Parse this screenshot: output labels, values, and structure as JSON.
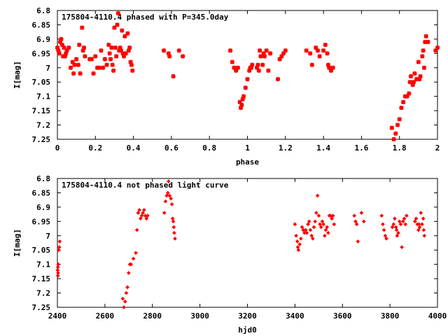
{
  "chart_data": [
    {
      "type": "scatter",
      "title": "175804-4110.4 phased with P=345.0day",
      "xlabel": "phase",
      "ylabel": "I[mag]",
      "xlim": [
        0,
        2
      ],
      "ylim": [
        7.25,
        6.8
      ],
      "y_inverted": true,
      "x_ticks": [
        "0",
        "0.2",
        "0.4",
        "0.6",
        "0.8",
        "1",
        "1.2",
        "1.4",
        "1.6",
        "1.8",
        "2"
      ],
      "y_ticks": [
        "6.8",
        "6.85",
        "6.9",
        "6.95",
        "7",
        "7.05",
        "7.1",
        "7.15",
        "7.2",
        "7.25"
      ],
      "marker": "star",
      "color": "#ff0000",
      "grid": false,
      "series": [
        {
          "points": [
            [
              0.0,
              6.93
            ],
            [
              0.005,
              6.94
            ],
            [
              0.01,
              6.95
            ],
            [
              0.015,
              6.91
            ],
            [
              0.02,
              6.9
            ],
            [
              0.025,
              6.92
            ],
            [
              0.03,
              6.96
            ],
            [
              0.035,
              6.93
            ],
            [
              0.04,
              6.96
            ],
            [
              0.045,
              6.95
            ],
            [
              0.05,
              6.94
            ],
            [
              0.06,
              6.93
            ],
            [
              0.07,
              7.0
            ],
            [
              0.08,
              6.98
            ],
            [
              0.085,
              7.02
            ],
            [
              0.09,
              6.99
            ],
            [
              0.1,
              6.97
            ],
            [
              0.11,
              6.99
            ],
            [
              0.115,
              6.92
            ],
            [
              0.12,
              7.02
            ],
            [
              0.13,
              6.86
            ],
            [
              0.135,
              6.94
            ],
            [
              0.14,
              6.93
            ],
            [
              0.145,
              6.96
            ],
            [
              0.17,
              6.97
            ],
            [
              0.18,
              6.97
            ],
            [
              0.19,
              7.02
            ],
            [
              0.2,
              6.96
            ],
            [
              0.21,
              7.0
            ],
            [
              0.22,
              7.0
            ],
            [
              0.23,
              6.94
            ],
            [
              0.24,
              7.0
            ],
            [
              0.25,
              6.97
            ],
            [
              0.26,
              6.99
            ],
            [
              0.27,
              6.92
            ],
            [
              0.275,
              6.95
            ],
            [
              0.28,
              6.97
            ],
            [
              0.285,
              6.93
            ],
            [
              0.29,
              6.99
            ],
            [
              0.295,
              7.01
            ],
            [
              0.3,
              6.86
            ],
            [
              0.305,
              6.93
            ],
            [
              0.31,
              6.96
            ],
            [
              0.315,
              6.85
            ],
            [
              0.32,
              6.81
            ],
            [
              0.325,
              6.94
            ],
            [
              0.33,
              6.93
            ],
            [
              0.335,
              6.94
            ],
            [
              0.34,
              6.87
            ],
            [
              0.345,
              6.95
            ],
            [
              0.35,
              6.96
            ],
            [
              0.355,
              6.89
            ],
            [
              0.36,
              6.95
            ],
            [
              0.37,
              6.88
            ],
            [
              0.375,
              6.94
            ],
            [
              0.38,
              6.93
            ],
            [
              0.385,
              6.98
            ],
            [
              0.39,
              6.99
            ],
            [
              0.395,
              7.01
            ],
            [
              0.56,
              6.94
            ],
            [
              0.585,
              6.95
            ],
            [
              0.59,
              6.96
            ],
            [
              0.61,
              7.03
            ],
            [
              0.64,
              6.94
            ],
            [
              0.66,
              6.96
            ],
            [
              0.91,
              6.94
            ],
            [
              0.92,
              6.98
            ],
            [
              0.93,
              7.0
            ],
            [
              0.94,
              7.01
            ],
            [
              0.95,
              7.0
            ],
            [
              0.96,
              7.12
            ],
            [
              0.965,
              7.14
            ],
            [
              0.97,
              7.13
            ],
            [
              0.975,
              7.11
            ],
            [
              0.98,
              7.1
            ],
            [
              0.99,
              7.07
            ],
            [
              1.0,
              7.04
            ],
            [
              1.01,
              7.01
            ],
            [
              1.015,
              7.0
            ],
            [
              1.02,
              7.0
            ],
            [
              1.025,
              6.99
            ],
            [
              1.05,
              7.0
            ],
            [
              1.055,
              6.99
            ],
            [
              1.06,
              7.01
            ],
            [
              1.065,
              6.94
            ],
            [
              1.07,
              6.96
            ],
            [
              1.08,
              6.99
            ],
            [
              1.085,
              6.95
            ],
            [
              1.09,
              6.96
            ],
            [
              1.1,
              6.94
            ],
            [
              1.11,
              7.01
            ],
            [
              1.12,
              6.95
            ],
            [
              1.16,
              7.04
            ],
            [
              1.17,
              6.97
            ],
            [
              1.18,
              6.96
            ],
            [
              1.19,
              6.95
            ],
            [
              1.2,
              6.94
            ],
            [
              1.31,
              6.94
            ],
            [
              1.33,
              6.95
            ],
            [
              1.34,
              6.99
            ],
            [
              1.36,
              6.93
            ],
            [
              1.37,
              6.94
            ],
            [
              1.38,
              6.96
            ],
            [
              1.4,
              6.94
            ],
            [
              1.41,
              6.92
            ],
            [
              1.42,
              6.95
            ],
            [
              1.425,
              6.99
            ],
            [
              1.43,
              7.0
            ],
            [
              1.44,
              7.01
            ],
            [
              1.45,
              7.0
            ],
            [
              1.76,
              7.21
            ],
            [
              1.77,
              7.25
            ],
            [
              1.78,
              7.23
            ],
            [
              1.79,
              7.2
            ],
            [
              1.8,
              7.18
            ],
            [
              1.81,
              7.14
            ],
            [
              1.82,
              7.12
            ],
            [
              1.83,
              7.1
            ],
            [
              1.84,
              7.1
            ],
            [
              1.85,
              7.09
            ],
            [
              1.855,
              7.05
            ],
            [
              1.86,
              7.03
            ],
            [
              1.87,
              7.06
            ],
            [
              1.875,
              7.05
            ],
            [
              1.88,
              7.02
            ],
            [
              1.89,
              7.04
            ],
            [
              1.9,
              6.98
            ],
            [
              1.905,
              7.04
            ],
            [
              1.91,
              7.03
            ],
            [
              1.92,
              6.96
            ],
            [
              1.925,
              6.94
            ],
            [
              1.93,
              7.0
            ],
            [
              1.935,
              6.91
            ],
            [
              1.94,
              6.89
            ],
            [
              1.95,
              6.91
            ],
            [
              1.99,
              6.94
            ],
            [
              2.0,
              6.93
            ]
          ]
        }
      ]
    },
    {
      "type": "scatter",
      "title": "175804-4110.4 not phased light curve",
      "xlabel": "hjd0",
      "ylabel": "I[mag]",
      "xlim": [
        2400,
        4000
      ],
      "ylim": [
        7.25,
        6.8
      ],
      "y_inverted": true,
      "x_ticks": [
        "2400",
        "2600",
        "2800",
        "3000",
        "3200",
        "3400",
        "3600",
        "3800",
        "4000"
      ],
      "y_ticks": [
        "6.8",
        "6.85",
        "6.9",
        "6.95",
        "7",
        "7.05",
        "7.1",
        "7.15",
        "7.2",
        "7.25"
      ],
      "marker": "diamond",
      "color": "#ff0000",
      "grid": false,
      "series": [
        {
          "points": [
            [
              2401,
              7.12
            ],
            [
              2402,
              7.11
            ],
            [
              2402,
              7.14
            ],
            [
              2403,
              7.13
            ],
            [
              2404,
              7.1
            ],
            [
              2405,
              7.05
            ],
            [
              2408,
              7.04
            ],
            [
              2410,
              7.02
            ],
            [
              2675,
              7.22
            ],
            [
              2680,
              7.25
            ],
            [
              2685,
              7.23
            ],
            [
              2690,
              7.2
            ],
            [
              2695,
              7.18
            ],
            [
              2700,
              7.13
            ],
            [
              2705,
              7.1
            ],
            [
              2710,
              7.1
            ],
            [
              2720,
              7.08
            ],
            [
              2730,
              7.06
            ],
            [
              2735,
              6.98
            ],
            [
              2740,
              6.92
            ],
            [
              2745,
              6.91
            ],
            [
              2750,
              6.94
            ],
            [
              2755,
              6.93
            ],
            [
              2760,
              6.92
            ],
            [
              2765,
              6.91
            ],
            [
              2770,
              6.93
            ],
            [
              2775,
              6.94
            ],
            [
              2780,
              6.93
            ],
            [
              2850,
              6.92
            ],
            [
              2855,
              6.88
            ],
            [
              2860,
              6.86
            ],
            [
              2865,
              6.85
            ],
            [
              2868,
              6.81
            ],
            [
              2872,
              6.86
            ],
            [
              2878,
              6.87
            ],
            [
              2882,
              6.89
            ],
            [
              2885,
              6.94
            ],
            [
              2888,
              6.95
            ],
            [
              2890,
              6.97
            ],
            [
              2892,
              6.99
            ],
            [
              2895,
              7.01
            ],
            [
              3400,
              6.96
            ],
            [
              3405,
              7.0
            ],
            [
              3410,
              7.02
            ],
            [
              3412,
              7.04
            ],
            [
              3415,
              7.05
            ],
            [
              3420,
              7.03
            ],
            [
              3425,
              7.01
            ],
            [
              3430,
              6.97
            ],
            [
              3435,
              6.98
            ],
            [
              3440,
              6.99
            ],
            [
              3445,
              6.98
            ],
            [
              3450,
              6.99
            ],
            [
              3455,
              6.96
            ],
            [
              3460,
              6.95
            ],
            [
              3465,
              6.98
            ],
            [
              3470,
              7.0
            ],
            [
              3475,
              7.01
            ],
            [
              3480,
              6.97
            ],
            [
              3485,
              6.95
            ],
            [
              3490,
              6.92
            ],
            [
              3495,
              6.86
            ],
            [
              3500,
              6.93
            ],
            [
              3505,
              6.96
            ],
            [
              3510,
              6.97
            ],
            [
              3515,
              6.95
            ],
            [
              3520,
              6.96
            ],
            [
              3525,
              7.0
            ],
            [
              3530,
              6.98
            ],
            [
              3535,
              6.97
            ],
            [
              3540,
              6.99
            ],
            [
              3545,
              6.93
            ],
            [
              3550,
              6.93
            ],
            [
              3555,
              6.94
            ],
            [
              3560,
              6.93
            ],
            [
              3565,
              6.96
            ],
            [
              3650,
              6.93
            ],
            [
              3655,
              6.95
            ],
            [
              3660,
              6.96
            ],
            [
              3665,
              7.02
            ],
            [
              3680,
              6.92
            ],
            [
              3690,
              6.95
            ],
            [
              3765,
              6.93
            ],
            [
              3770,
              6.96
            ],
            [
              3775,
              6.98
            ],
            [
              3780,
              7.0
            ],
            [
              3785,
              7.01
            ],
            [
              3810,
              6.97
            ],
            [
              3815,
              6.96
            ],
            [
              3820,
              6.94
            ],
            [
              3825,
              6.97
            ],
            [
              3828,
              6.98
            ],
            [
              3830,
              7.0
            ],
            [
              3835,
              6.99
            ],
            [
              3840,
              6.95
            ],
            [
              3845,
              6.96
            ],
            [
              3850,
              7.04
            ],
            [
              3855,
              6.95
            ],
            [
              3860,
              6.94
            ],
            [
              3865,
              6.96
            ],
            [
              3870,
              6.93
            ],
            [
              3905,
              6.95
            ],
            [
              3910,
              6.94
            ],
            [
              3915,
              6.96
            ],
            [
              3920,
              6.98
            ],
            [
              3922,
              6.96
            ],
            [
              3925,
              6.97
            ],
            [
              3930,
              6.92
            ],
            [
              3935,
              6.96
            ],
            [
              3940,
              6.94
            ],
            [
              3942,
              6.98
            ],
            [
              3945,
              7.0
            ]
          ]
        }
      ]
    }
  ]
}
